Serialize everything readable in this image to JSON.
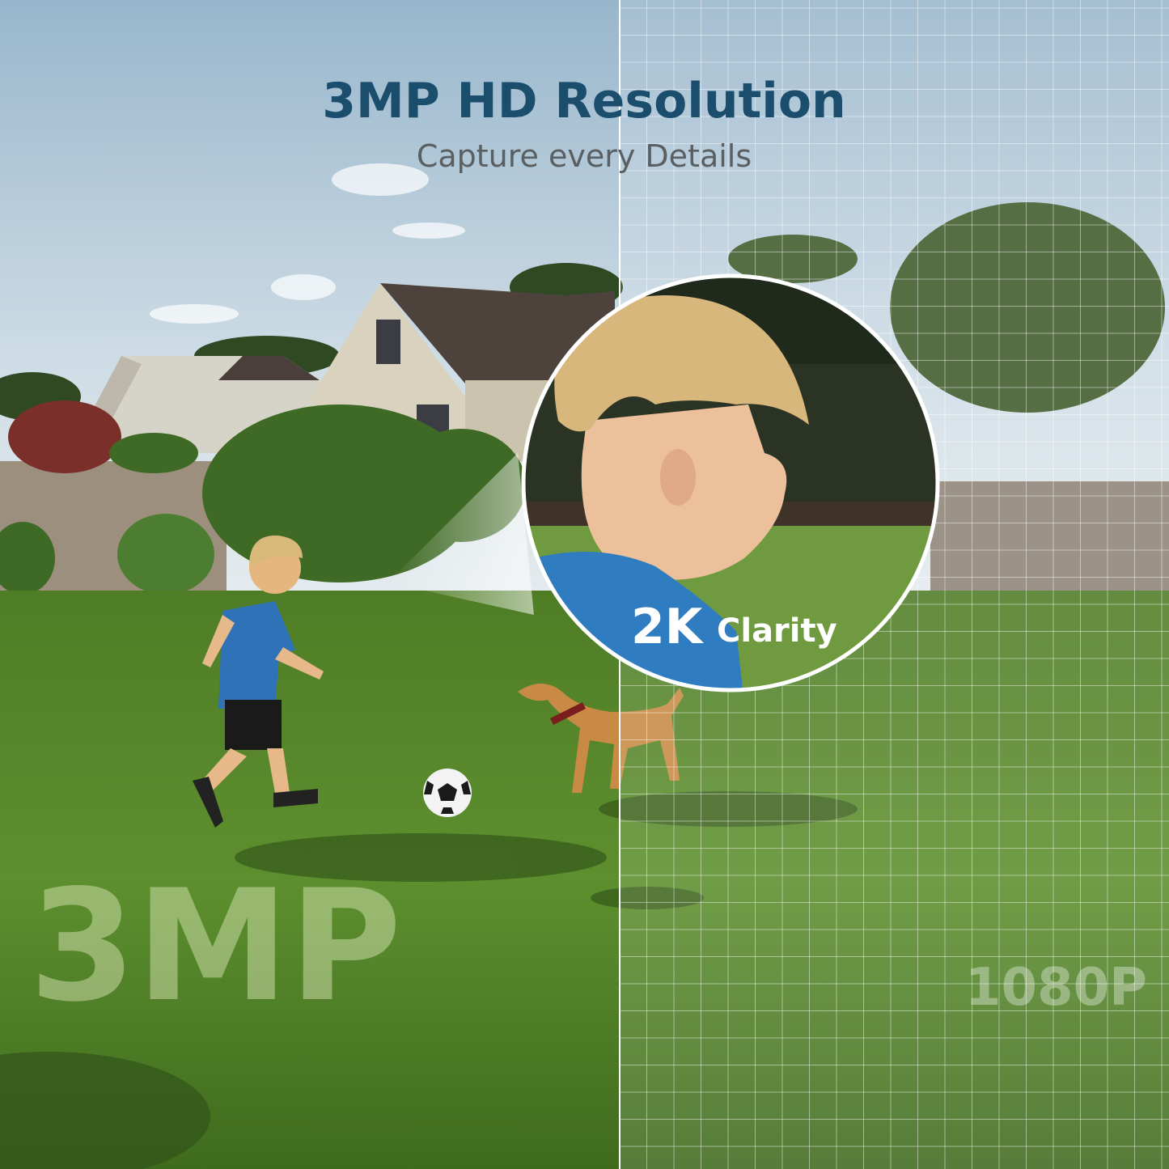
{
  "header": {
    "title": "3MP HD Resolution",
    "subtitle": "Capture every Details"
  },
  "zoom": {
    "label_main": "2K",
    "label_sub": "Clarity"
  },
  "labels": {
    "left": "3MP",
    "right": "1080P"
  }
}
